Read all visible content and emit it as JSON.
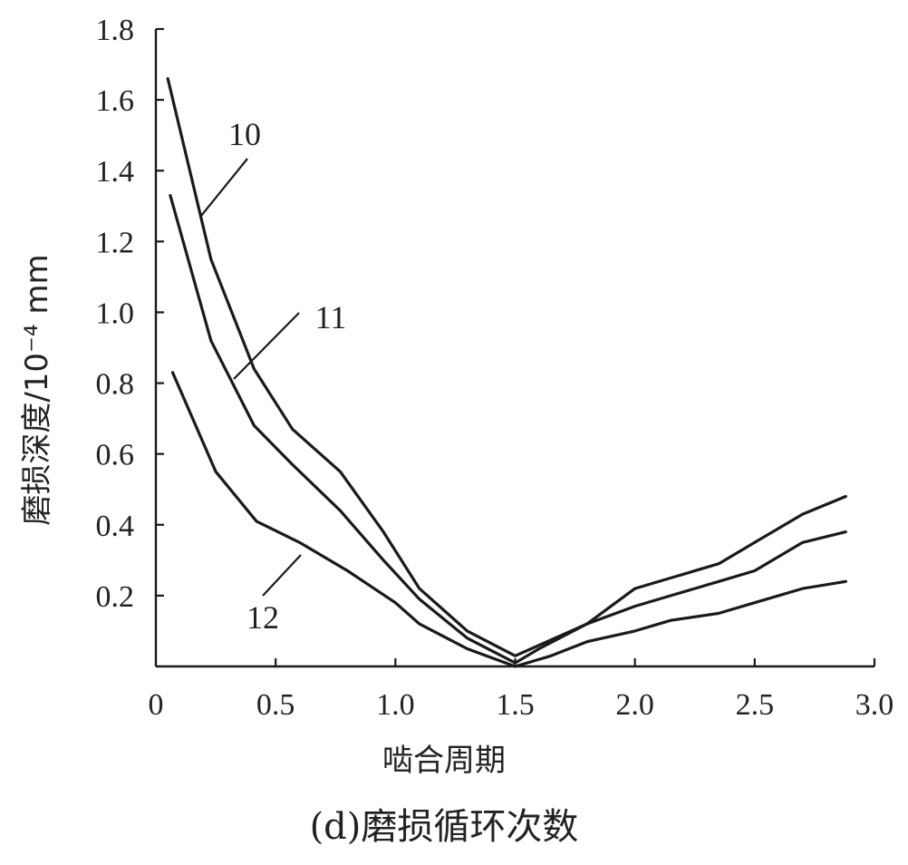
{
  "chart_data": {
    "type": "line",
    "title": "",
    "caption": "(d)磨损循环次数",
    "xlabel": "啮合周期",
    "ylabel": "磨损深度/10⁻⁴ mm",
    "xlim": [
      0,
      3.0
    ],
    "ylim": [
      0,
      1.8
    ],
    "x_ticks": [
      0,
      0.5,
      1.0,
      1.5,
      2.0,
      2.5,
      3.0
    ],
    "x_tick_labels": [
      "0",
      "0.5",
      "1.0",
      "1.5",
      "2.0",
      "2.5",
      "3.0"
    ],
    "y_ticks": [
      0.2,
      0.4,
      0.6,
      0.8,
      1.0,
      1.2,
      1.4,
      1.6,
      1.8
    ],
    "y_tick_labels": [
      "0.2",
      "0.4",
      "0.6",
      "0.8",
      "1.0",
      "1.2",
      "1.4",
      "1.6",
      "1.8"
    ],
    "grid": false,
    "series": [
      {
        "name": "10",
        "x": [
          0.05,
          0.23,
          0.41,
          0.57,
          0.77,
          0.95,
          1.1,
          1.3,
          1.5,
          1.6,
          1.8,
          2.0,
          2.15,
          2.35,
          2.5,
          2.7,
          2.88
        ],
        "y": [
          1.66,
          1.15,
          0.84,
          0.67,
          0.55,
          0.38,
          0.22,
          0.1,
          0.03,
          0.06,
          0.12,
          0.22,
          0.25,
          0.29,
          0.35,
          0.43,
          0.48
        ]
      },
      {
        "name": "11",
        "x": [
          0.06,
          0.23,
          0.41,
          0.57,
          0.77,
          0.95,
          1.1,
          1.3,
          1.5,
          1.6,
          1.8,
          2.0,
          2.15,
          2.35,
          2.5,
          2.7,
          2.88
        ],
        "y": [
          1.33,
          0.92,
          0.68,
          0.57,
          0.44,
          0.3,
          0.19,
          0.08,
          0.01,
          0.05,
          0.12,
          0.17,
          0.2,
          0.24,
          0.27,
          0.35,
          0.38
        ]
      },
      {
        "name": "12",
        "x": [
          0.07,
          0.25,
          0.42,
          0.6,
          0.8,
          1.0,
          1.1,
          1.3,
          1.5,
          1.65,
          1.8,
          2.0,
          2.15,
          2.35,
          2.5,
          2.7,
          2.88
        ],
        "y": [
          0.83,
          0.55,
          0.41,
          0.35,
          0.27,
          0.18,
          0.12,
          0.05,
          0.0,
          0.03,
          0.07,
          0.1,
          0.13,
          0.15,
          0.18,
          0.22,
          0.24
        ]
      }
    ],
    "annotations": [
      {
        "series": "10",
        "text": "10"
      },
      {
        "series": "11",
        "text": "11"
      },
      {
        "series": "12",
        "text": "12"
      }
    ]
  }
}
